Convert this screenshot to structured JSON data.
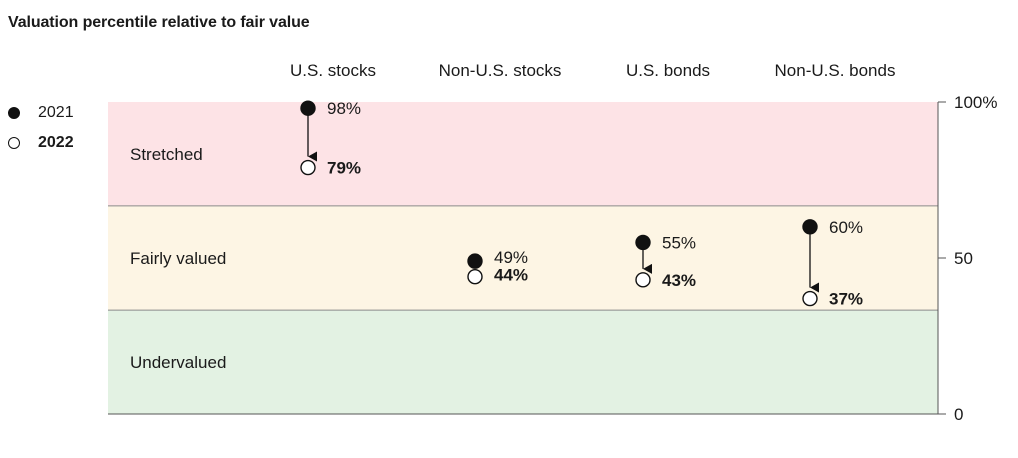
{
  "title": "Valuation percentile relative to fair value",
  "legend": {
    "items": [
      {
        "label": "2021",
        "marker": "filled"
      },
      {
        "label": "2022",
        "marker": "hollow"
      }
    ]
  },
  "chart_data": {
    "type": "scatter",
    "title": "Valuation percentile relative to fair value",
    "categories": [
      "U.S. stocks",
      "Non-U.S. stocks",
      "U.S. bonds",
      "Non-U.S. bonds"
    ],
    "series": [
      {
        "name": "2021",
        "values": [
          98,
          49,
          55,
          60
        ],
        "labels": [
          "98%",
          "49%",
          "55%",
          "60%"
        ],
        "marker": "filled"
      },
      {
        "name": "2022",
        "values": [
          79,
          44,
          43,
          37
        ],
        "labels": [
          "79%",
          "44%",
          "43%",
          "37%"
        ],
        "marker": "hollow"
      }
    ],
    "ylim": [
      0,
      100
    ],
    "yticks": [
      0,
      50,
      100
    ],
    "ytick_labels": [
      "0",
      "50",
      "100%"
    ],
    "y_axis_side": "right",
    "bands": [
      {
        "label": "Stretched",
        "from": 66.7,
        "to": 100,
        "color": "#fde3e6"
      },
      {
        "label": "Fairly valued",
        "from": 33.3,
        "to": 66.7,
        "color": "#fdf5e4"
      },
      {
        "label": "Undervalued",
        "from": 0,
        "to": 33.3,
        "color": "#e3f2e3"
      }
    ],
    "arrows": "2021 to 2022",
    "legend_position": "top-left"
  }
}
